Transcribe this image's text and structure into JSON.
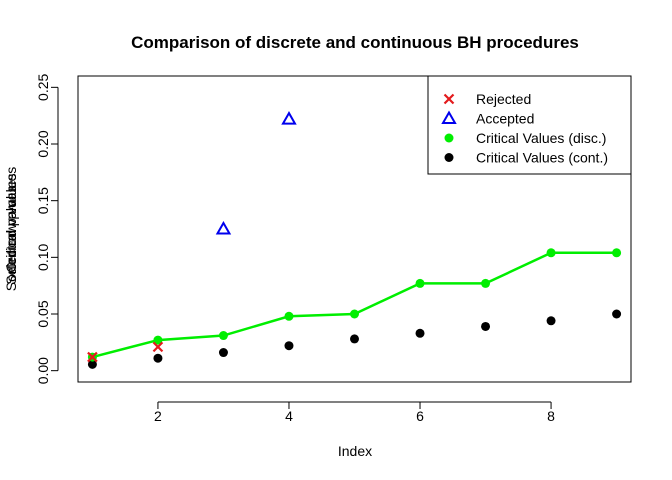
{
  "chart_data": {
    "type": "scatter",
    "title": "Comparison of discrete and continuous BH procedures",
    "xlabel": "Index",
    "ylabel": "Selected p-values",
    "ylabel_overlays": [
      "Critical values",
      "Sorted raw p-values"
    ],
    "xlim": [
      0.78,
      9.22
    ],
    "ylim": [
      -0.01,
      0.26
    ],
    "x_ticks": [
      2,
      4,
      6,
      8
    ],
    "y_ticks": [
      "0.00",
      "0.05",
      "0.10",
      "0.15",
      "0.20",
      "0.25"
    ],
    "legend_position": "top-right",
    "series": [
      {
        "name": "Rejected",
        "marker": "cross",
        "color": "#e31a1c",
        "points": [
          [
            1,
            0.012
          ],
          [
            2,
            0.021
          ]
        ]
      },
      {
        "name": "Accepted",
        "marker": "triangle",
        "color": "#0000ee",
        "points": [
          [
            3,
            0.125
          ],
          [
            4,
            0.222
          ]
        ]
      },
      {
        "name": "Critical Values (disc.)",
        "marker": "dot",
        "color": "#00ee00",
        "line": true,
        "points": [
          [
            1,
            0.012
          ],
          [
            2,
            0.027
          ],
          [
            3,
            0.031
          ],
          [
            4,
            0.048
          ],
          [
            5,
            0.05
          ],
          [
            6,
            0.077
          ],
          [
            7,
            0.077
          ],
          [
            8,
            0.104
          ],
          [
            9,
            0.104
          ]
        ]
      },
      {
        "name": "Critical Values (cont.)",
        "marker": "dot",
        "color": "#000000",
        "points": [
          [
            1,
            0.0056
          ],
          [
            2,
            0.011
          ],
          [
            3,
            0.016
          ],
          [
            4,
            0.022
          ],
          [
            5,
            0.028
          ],
          [
            6,
            0.033
          ],
          [
            7,
            0.039
          ],
          [
            8,
            0.044
          ],
          [
            9,
            0.05
          ]
        ]
      }
    ]
  }
}
